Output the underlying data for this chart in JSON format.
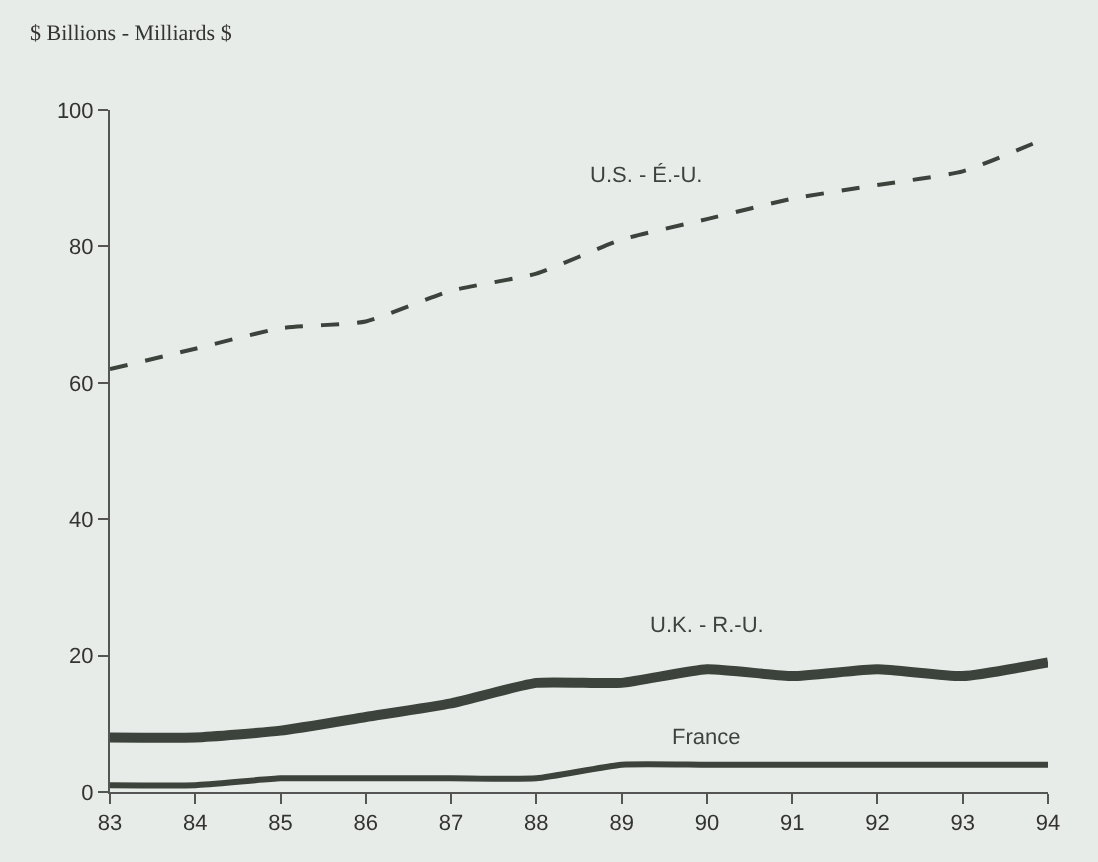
{
  "chart_data": {
    "type": "line",
    "ylabel": "$ Billions - Milliards $",
    "x": [
      83,
      84,
      85,
      86,
      87,
      88,
      89,
      90,
      91,
      92,
      93,
      94
    ],
    "series": [
      {
        "name": "U.S. - É.-U.",
        "color": "#3c423c",
        "line_style": "dashed",
        "values": [
          62,
          65,
          68,
          69,
          73.5,
          76,
          81,
          84,
          87,
          89,
          91,
          96
        ]
      },
      {
        "name": "U.K. - R.-U.",
        "color": "#3c423c",
        "line_style": "solid",
        "values": [
          8,
          8,
          9,
          11,
          13,
          16,
          16,
          18,
          17,
          18,
          17,
          19
        ]
      },
      {
        "name": "France",
        "color": "#3c423c",
        "line_style": "solid",
        "values": [
          1,
          1,
          2,
          2,
          2,
          2,
          4,
          4,
          4,
          4,
          4,
          4
        ]
      }
    ],
    "xlim": [
      83,
      94
    ],
    "xticks": [
      83,
      84,
      85,
      86,
      87,
      88,
      89,
      90,
      91,
      92,
      93,
      94
    ],
    "ylim": [
      0,
      100
    ],
    "yticks": [
      0,
      20,
      40,
      60,
      80,
      100
    ],
    "grid": false,
    "legend": false
  }
}
